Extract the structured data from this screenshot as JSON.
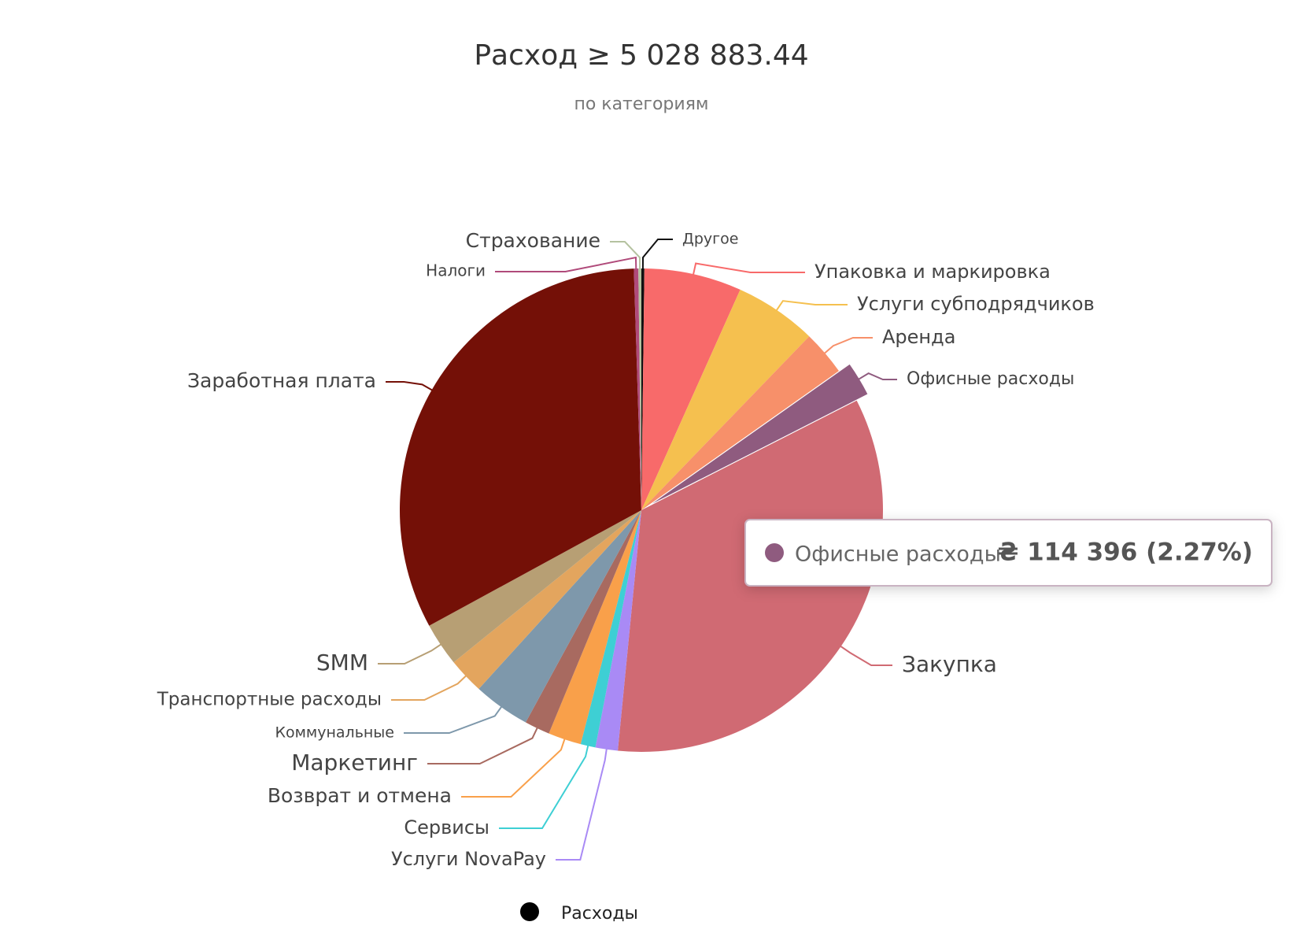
{
  "chart_data": {
    "type": "pie",
    "title": "Расход ≥ 5 028 883.44",
    "subtitle": "по категориям",
    "categories": [
      "Другое",
      "Упаковка и маркировка",
      "Услуги субподрядчиков",
      "Аренда",
      "Офисные расходы",
      "Закупка",
      "Услуги NovaPay",
      "Сервисы",
      "Возврат и отмена",
      "Маркетинг",
      "Коммунальные",
      "Транспортные расходы",
      "SMM",
      "Заработная плата",
      "Налоги",
      "Страхование"
    ],
    "colors": [
      "#111111",
      "#f86a6a",
      "#f5c04f",
      "#f7906a",
      "#8f5b7f",
      "#d06a73",
      "#a98af5",
      "#3ecfd4",
      "#f9a04a",
      "#a86a60",
      "#7e98ab",
      "#e3a55e",
      "#b79f74",
      "#741007",
      "#b04a7a",
      "#b5c2a0"
    ],
    "series": [
      {
        "name": "Расходы",
        "color": "#000000",
        "values": [
          10000,
          327000,
          277000,
          151000,
          114396,
          1710000,
          75000,
          50000,
          111000,
          85000,
          191000,
          121000,
          146000,
          1629000,
          15000,
          10000
        ]
      }
    ],
    "tooltip": {
      "label": "Офисные расходы",
      "value_label": "₴ 114 396 (2.27%)"
    }
  }
}
